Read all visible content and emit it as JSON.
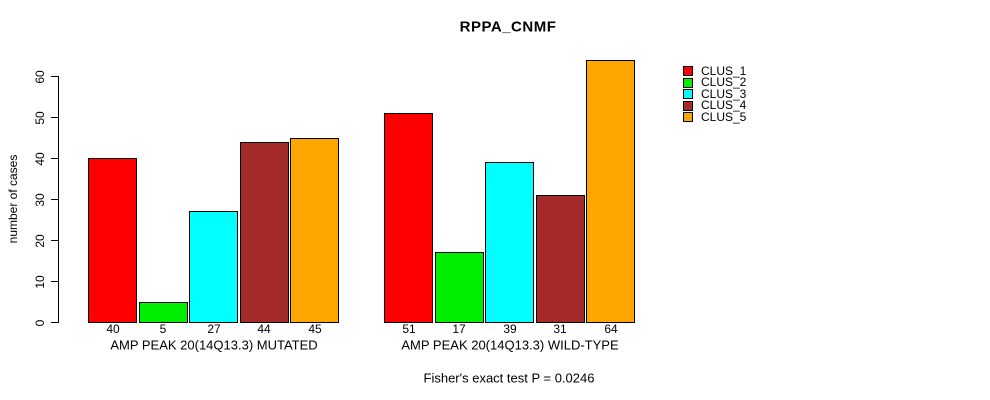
{
  "chart_data": {
    "type": "bar",
    "title": "RPPA_CNMF",
    "ylabel": "number of cases",
    "ylim": [
      0,
      60
    ],
    "yticks": [
      0,
      10,
      20,
      30,
      40,
      50,
      60
    ],
    "grid": false,
    "legend_position": "right",
    "series": [
      {
        "name": "CLUS_1",
        "color": "#FF0000"
      },
      {
        "name": "CLUS_2",
        "color": "#00EE00"
      },
      {
        "name": "CLUS_3",
        "color": "#00FFFF"
      },
      {
        "name": "CLUS_4",
        "color": "#A52A2A"
      },
      {
        "name": "CLUS_5",
        "color": "#FFA500"
      }
    ],
    "groups": [
      {
        "label": "AMP PEAK 20(14Q13.3) MUTATED",
        "values": [
          40,
          5,
          27,
          44,
          45
        ]
      },
      {
        "label": "AMP PEAK 20(14Q13.3) WILD-TYPE",
        "values": [
          51,
          17,
          39,
          31,
          64
        ]
      }
    ],
    "footnote": "Fisher's exact test P = 0.0246"
  },
  "colors": {
    "axis": "#000000",
    "text": "#000000",
    "background": "#FFFFFF"
  }
}
